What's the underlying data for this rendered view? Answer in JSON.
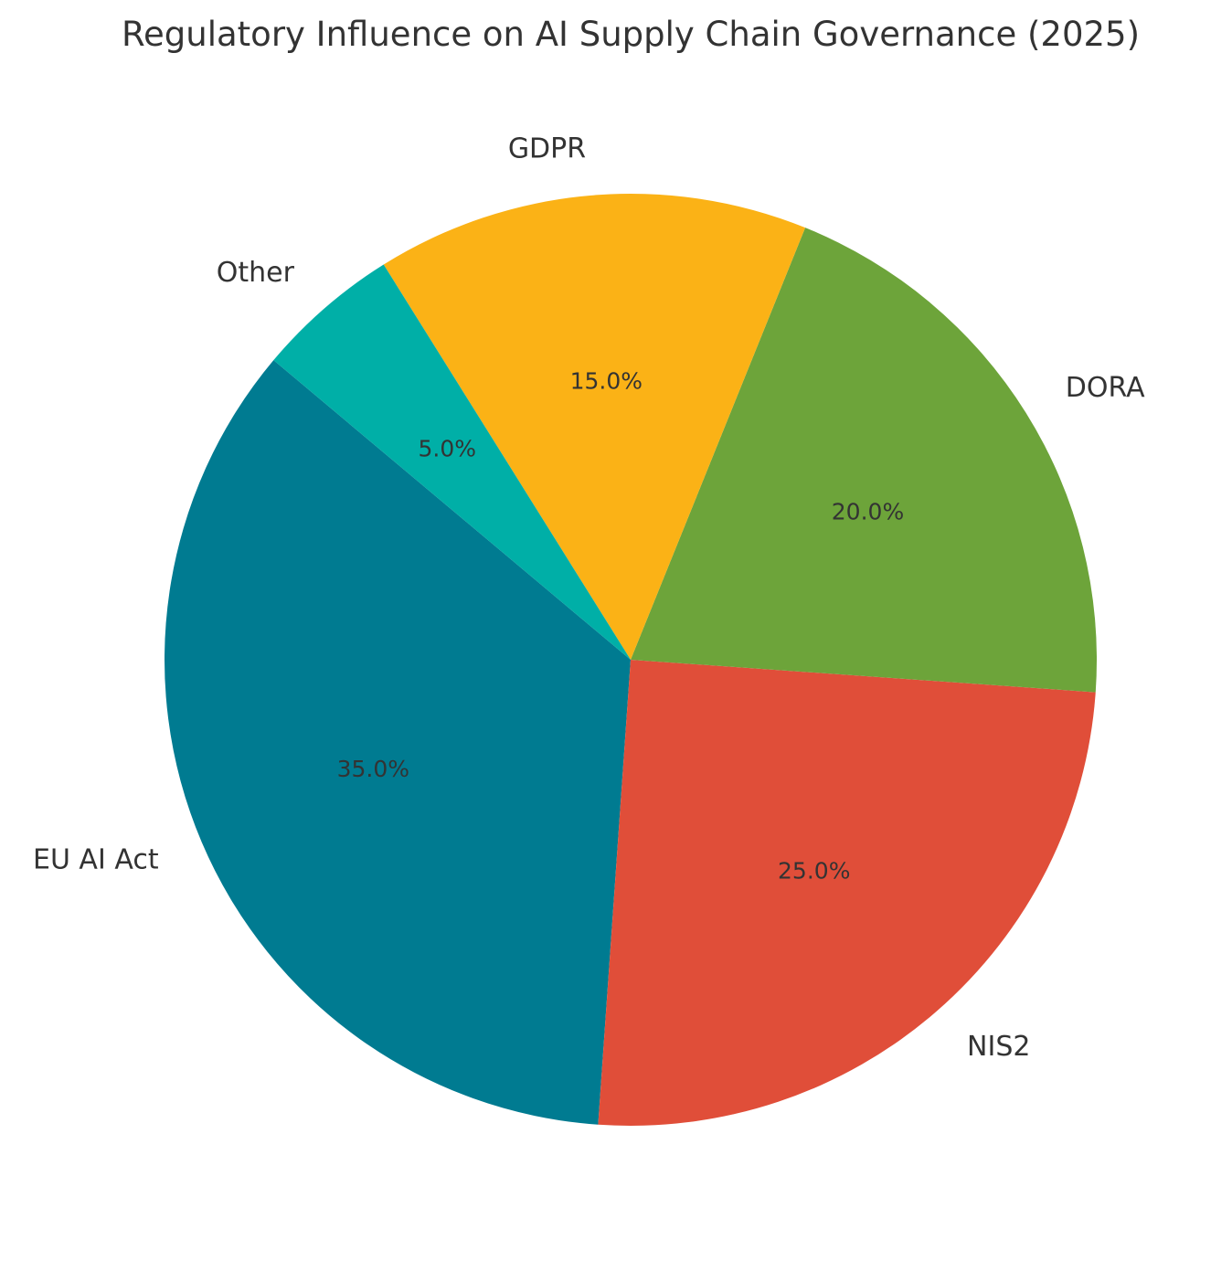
{
  "chart_data": {
    "type": "pie",
    "title": "Regulatory Influence on AI Supply Chain Governance (2025)",
    "start_angle_deg": 140,
    "direction": "counterclockwise",
    "slices": [
      {
        "label": "EU AI Act",
        "value": 35.0,
        "pct_label": "35.0%",
        "color": "#007B91"
      },
      {
        "label": "NIS2",
        "value": 25.0,
        "pct_label": "25.0%",
        "color": "#E04E39"
      },
      {
        "label": "DORA",
        "value": 20.0,
        "pct_label": "20.0%",
        "color": "#6DA43A"
      },
      {
        "label": "GDPR",
        "value": 15.0,
        "pct_label": "15.0%",
        "color": "#FBB216"
      },
      {
        "label": "Other",
        "value": 5.0,
        "pct_label": "5.0%",
        "color": "#00AFA7"
      }
    ]
  }
}
